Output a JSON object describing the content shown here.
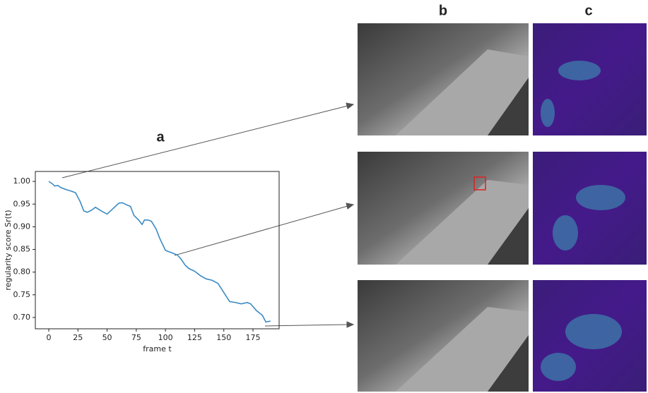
{
  "panel_labels": {
    "a": "a",
    "b": "b",
    "c": "c"
  },
  "chart_data": {
    "type": "line",
    "x_label": "frame t",
    "y_label": "regularity score Sr(t)",
    "x": [
      0,
      3,
      5,
      8,
      10,
      15,
      20,
      23,
      27,
      30,
      33,
      37,
      40,
      45,
      50,
      55,
      60,
      63,
      67,
      70,
      73,
      77,
      80,
      82,
      85,
      88,
      92,
      95,
      100,
      105,
      110,
      113,
      117,
      120,
      125,
      130,
      135,
      140,
      145,
      150,
      155,
      160,
      165,
      170,
      173,
      178,
      183,
      186,
      190
    ],
    "series": [
      {
        "color": "#3a8ac4",
        "values": [
          1.0,
          0.995,
          0.99,
          0.991,
          0.987,
          0.982,
          0.978,
          0.975,
          0.955,
          0.935,
          0.932,
          0.937,
          0.943,
          0.935,
          0.928,
          0.94,
          0.952,
          0.953,
          0.948,
          0.945,
          0.925,
          0.915,
          0.905,
          0.915,
          0.915,
          0.912,
          0.895,
          0.875,
          0.848,
          0.843,
          0.838,
          0.83,
          0.815,
          0.808,
          0.802,
          0.792,
          0.785,
          0.782,
          0.775,
          0.755,
          0.735,
          0.733,
          0.73,
          0.733,
          0.73,
          0.715,
          0.705,
          0.69,
          0.692
        ]
      }
    ],
    "xlim": [
      -11.5,
      197.4
    ],
    "ylim": [
      0.675,
      1.022
    ],
    "xticks": [
      0,
      25,
      50,
      75,
      100,
      125,
      150,
      175
    ],
    "yticks": [
      {
        "value": 1.0,
        "label": "1.00"
      },
      0.95,
      {
        "value": 0.9,
        "label": "0.90"
      },
      0.85,
      {
        "value": 0.8,
        "label": "0.80"
      },
      0.75,
      {
        "value": 0.7,
        "label": "0.70"
      }
    ]
  }
}
